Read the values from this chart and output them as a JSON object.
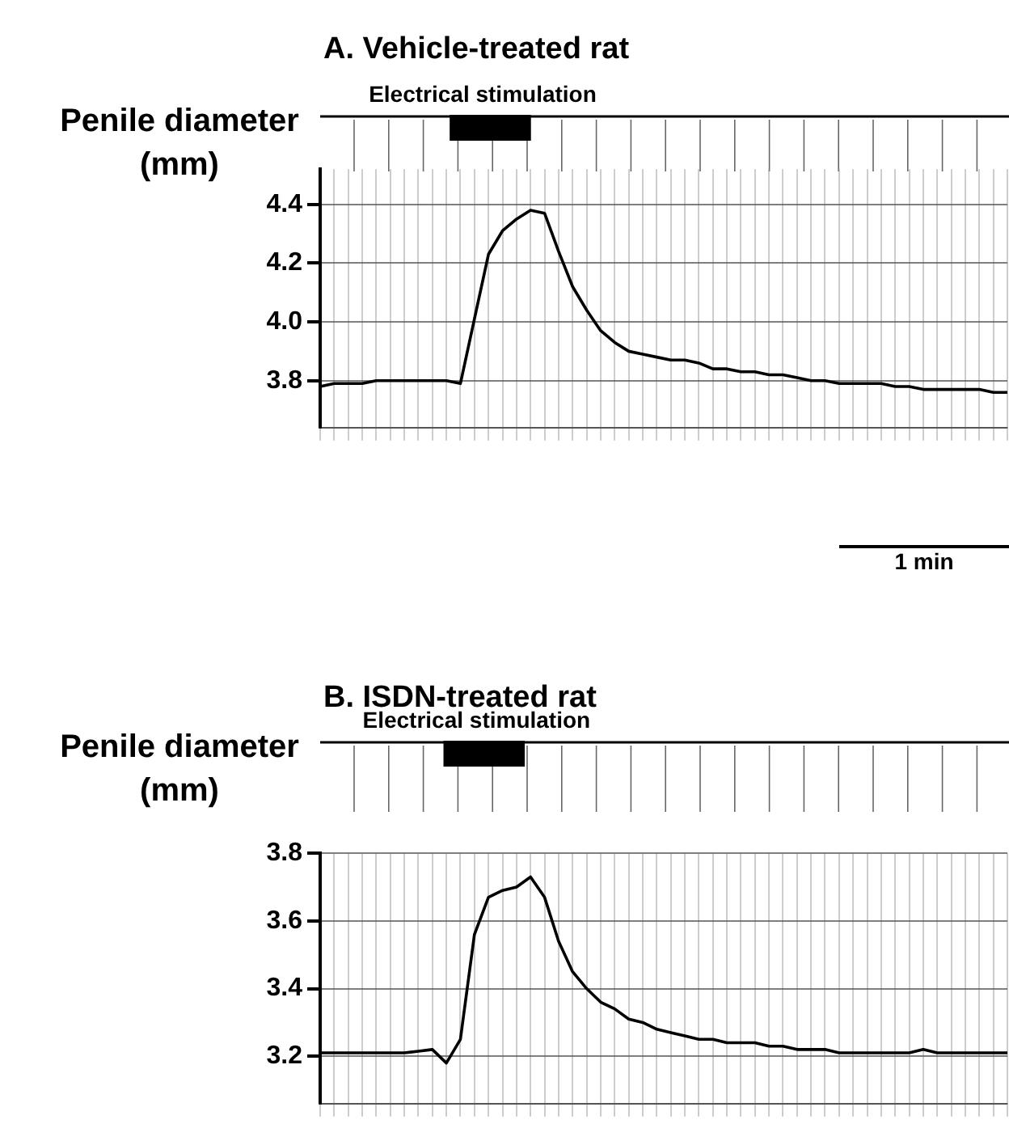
{
  "chart_data": [
    {
      "type": "line",
      "title": "A. Vehicle-treated rat",
      "ylabel": "Penile diameter (mm)",
      "annotations": [
        "Electrical stimulation",
        "1 min"
      ],
      "categories": [
        null,
        null,
        null,
        null,
        null,
        null,
        null,
        null,
        null,
        null,
        null,
        null,
        null,
        null,
        null,
        null,
        null,
        null,
        null,
        null,
        null,
        null,
        null,
        null,
        null,
        null,
        null,
        null,
        null,
        null,
        null,
        null,
        null,
        null,
        null,
        null,
        null,
        null,
        null,
        null,
        null,
        null,
        null,
        null,
        null,
        null,
        null,
        null,
        null,
        null
      ],
      "series": [
        {
          "color": "#000000",
          "values": [
            3.78,
            3.79,
            3.79,
            3.79,
            3.8,
            3.8,
            3.8,
            3.8,
            3.8,
            3.8,
            3.79,
            4.01,
            4.23,
            4.31,
            4.35,
            4.38,
            4.37,
            4.24,
            4.12,
            4.04,
            3.97,
            3.93,
            3.9,
            3.89,
            3.88,
            3.87,
            3.87,
            3.86,
            3.84,
            3.84,
            3.83,
            3.83,
            3.82,
            3.82,
            3.81,
            3.8,
            3.8,
            3.79,
            3.79,
            3.79,
            3.79,
            3.78,
            3.78,
            3.77,
            3.77,
            3.77,
            3.77,
            3.77,
            3.76,
            3.76
          ]
        }
      ],
      "ylim": [
        3.64,
        4.52
      ],
      "yticks": [
        3.8,
        {
          "value": 4,
          "label": "4.0"
        },
        4.2,
        4.4
      ],
      "grid": true,
      "tick_labels": "y"
    },
    {
      "type": "line",
      "title": "B. ISDN-treated rat",
      "ylabel": "Penile diameter (mm)",
      "annotations": [
        "Electrical stimulation"
      ],
      "categories": [
        null,
        null,
        null,
        null,
        null,
        null,
        null,
        null,
        null,
        null,
        null,
        null,
        null,
        null,
        null,
        null,
        null,
        null,
        null,
        null,
        null,
        null,
        null,
        null,
        null,
        null,
        null,
        null,
        null,
        null,
        null,
        null,
        null,
        null,
        null,
        null,
        null,
        null,
        null,
        null,
        null,
        null,
        null,
        null,
        null,
        null,
        null,
        null,
        null,
        null
      ],
      "series": [
        {
          "color": "#000000",
          "values": [
            3.21,
            3.21,
            3.21,
            3.21,
            3.21,
            3.21,
            3.21,
            3.215,
            3.22,
            3.18,
            3.25,
            3.56,
            3.67,
            3.69,
            3.7,
            3.73,
            3.67,
            3.54,
            3.45,
            3.4,
            3.36,
            3.34,
            3.31,
            3.3,
            3.28,
            3.27,
            3.26,
            3.25,
            3.25,
            3.24,
            3.24,
            3.24,
            3.23,
            3.23,
            3.22,
            3.22,
            3.22,
            3.21,
            3.21,
            3.21,
            3.21,
            3.21,
            3.21,
            3.22,
            3.21,
            3.21,
            3.21,
            3.21,
            3.21,
            3.21
          ]
        }
      ],
      "ylim": [
        3.06,
        3.8
      ],
      "yticks": [
        3.2,
        3.4,
        3.6,
        3.8
      ],
      "grid": true,
      "tick_labels": "y"
    }
  ]
}
